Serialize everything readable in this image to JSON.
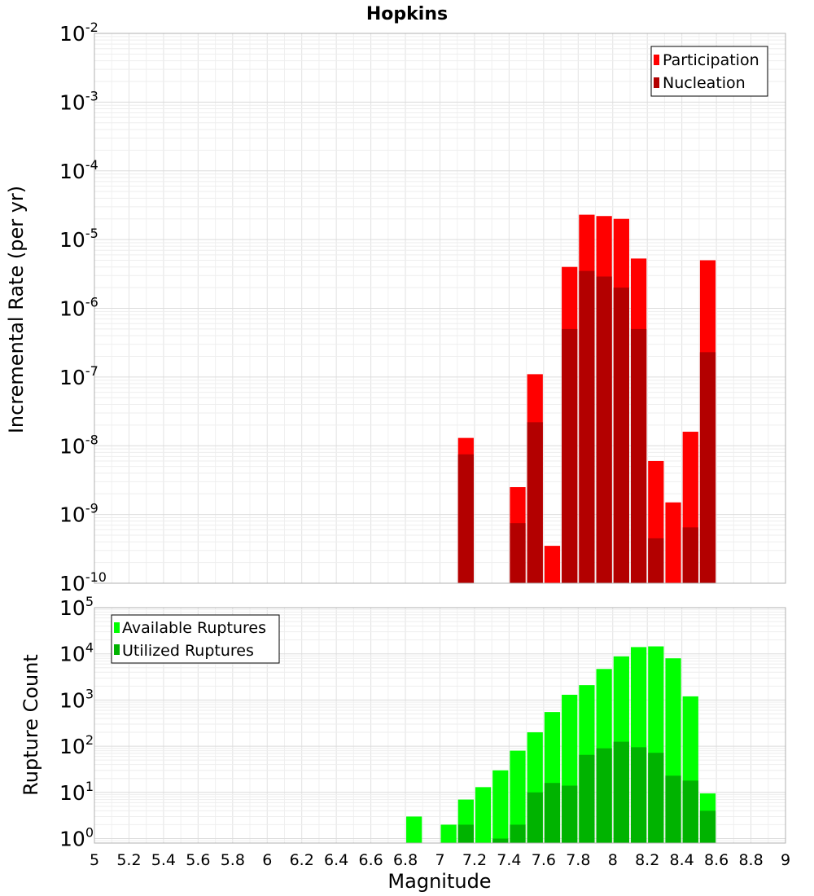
{
  "chart_data": {
    "title": "Hopkins",
    "xlabel": "Magnitude",
    "x_tick_labels": [
      "5",
      "5.2",
      "5.4",
      "5.6",
      "5.8",
      "6",
      "6.2",
      "6.4",
      "6.6",
      "6.8",
      "7",
      "7.2",
      "7.4",
      "7.6",
      "7.8",
      "8",
      "8.2",
      "8.4",
      "8.6",
      "8.8",
      "9"
    ],
    "xlim": [
      5,
      9
    ],
    "bar_width": 0.1,
    "panels": [
      {
        "type": "bar",
        "ylabel": "Incremental Rate (per yr)",
        "yscale": "log",
        "ylim": [
          1e-10,
          0.01
        ],
        "y_tick_labels": [
          {
            "base": "10",
            "exp": "-10"
          },
          {
            "base": "10",
            "exp": "-9"
          },
          {
            "base": "10",
            "exp": "-8"
          },
          {
            "base": "10",
            "exp": "-7"
          },
          {
            "base": "10",
            "exp": "-6"
          },
          {
            "base": "10",
            "exp": "-5"
          },
          {
            "base": "10",
            "exp": "-4"
          },
          {
            "base": "10",
            "exp": "-3"
          },
          {
            "base": "10",
            "exp": "-2"
          }
        ],
        "legend_position": "top-right",
        "grid": true,
        "series": [
          {
            "name": "Participation",
            "color": "#ff0000",
            "x": [
              7.15,
              7.45,
              7.55,
              7.65,
              7.75,
              7.85,
              7.95,
              8.05,
              8.15,
              8.25,
              8.35,
              8.45,
              8.55
            ],
            "values": [
              1.3e-08,
              2.5e-09,
              1.1e-07,
              3.5e-10,
              4e-06,
              2.3e-05,
              2.2e-05,
              2e-05,
              5.3e-06,
              6e-09,
              1.5e-09,
              1.6e-08,
              5e-06
            ]
          },
          {
            "name": "Nucleation",
            "color": "#b30000",
            "x": [
              7.15,
              7.45,
              7.55,
              7.75,
              7.85,
              7.95,
              8.05,
              8.15,
              8.25,
              8.45,
              8.55
            ],
            "values": [
              7.5e-09,
              7.5e-10,
              2.2e-08,
              5e-07,
              3.5e-06,
              2.9e-06,
              2e-06,
              5e-07,
              4.5e-10,
              6.5e-10,
              2.3e-07
            ]
          }
        ]
      },
      {
        "type": "bar",
        "ylabel": "Rupture Count",
        "yscale": "log",
        "ylim": [
          0.8,
          100000.0
        ],
        "y_tick_labels": [
          {
            "base": "10",
            "exp": "0"
          },
          {
            "base": "10",
            "exp": "1"
          },
          {
            "base": "10",
            "exp": "2"
          },
          {
            "base": "10",
            "exp": "3"
          },
          {
            "base": "10",
            "exp": "4"
          },
          {
            "base": "10",
            "exp": "5"
          }
        ],
        "legend_position": "top-left",
        "grid": true,
        "series": [
          {
            "name": "Available Ruptures",
            "color": "#00ff00",
            "x": [
              6.85,
              7.05,
              7.15,
              7.25,
              7.35,
              7.45,
              7.55,
              7.65,
              7.75,
              7.85,
              7.95,
              8.05,
              8.15,
              8.25,
              8.35,
              8.45,
              8.55
            ],
            "values": [
              3,
              2,
              7,
              13,
              30,
              80,
              200,
              550,
              1300,
              2100,
              4700,
              8800,
              14000,
              14500,
              8000,
              1200,
              9.5
            ]
          },
          {
            "name": "Utilized Ruptures",
            "color": "#00b300",
            "x": [
              7.15,
              7.35,
              7.45,
              7.55,
              7.65,
              7.75,
              7.85,
              7.95,
              8.05,
              8.15,
              8.25,
              8.35,
              8.45,
              8.55
            ],
            "values": [
              2,
              1,
              2,
              10,
              16,
              14,
              65,
              90,
              125,
              95,
              72,
              23,
              18,
              4
            ]
          }
        ]
      }
    ]
  }
}
